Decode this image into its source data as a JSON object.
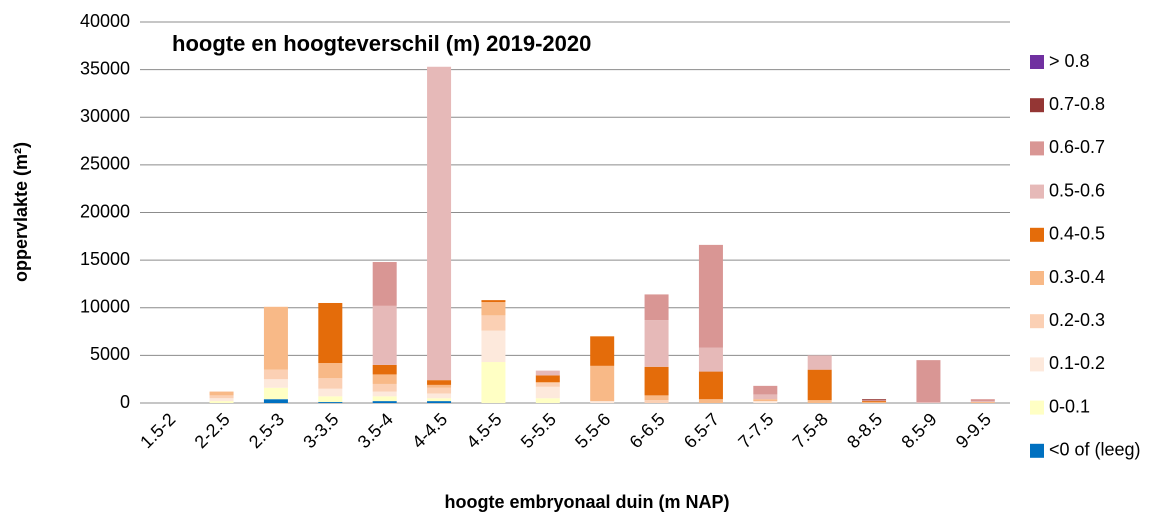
{
  "chart_data": {
    "type": "stacked_bar",
    "title": "hoogte en hoogteverschil (m) 2019-2020",
    "x_label": "hoogte embryonaal duin (m NAP)",
    "y_label": "oppervlakte (m²)",
    "categories": [
      "1.5-2",
      "2-2.5",
      "2.5-3",
      "3-3.5",
      "3.5-4",
      "4-4.5",
      "4.5-5",
      "5-5.5",
      "5.5-6",
      "6-6.5",
      "6.5-7",
      "7-7.5",
      "7.5-8",
      "8-8.5",
      "8.5-9",
      "9-9.5"
    ],
    "series": [
      {
        "name": "<0 of (leeg)",
        "color": "#0070c0",
        "values": [
          0,
          0,
          400,
          100,
          200,
          200,
          0,
          0,
          0,
          0,
          0,
          0,
          0,
          0,
          0,
          0
        ]
      },
      {
        "name": "0-0.1",
        "color": "#ffffc4",
        "values": [
          0,
          200,
          1200,
          600,
          500,
          300,
          4300,
          500,
          0,
          0,
          0,
          0,
          0,
          0,
          0,
          0
        ]
      },
      {
        "name": "0.1-0.2",
        "color": "#fde9dc",
        "values": [
          0,
          300,
          900,
          800,
          500,
          500,
          3300,
          1200,
          200,
          0,
          0,
          200,
          0,
          0,
          0,
          0
        ]
      },
      {
        "name": "0.2-0.3",
        "color": "#fbd0b4",
        "values": [
          0,
          300,
          1000,
          1100,
          800,
          600,
          1600,
          400,
          0,
          300,
          0,
          0,
          0,
          0,
          0,
          0
        ]
      },
      {
        "name": "0.3-0.4",
        "color": "#f8b987",
        "values": [
          0,
          400,
          6600,
          1600,
          1000,
          300,
          1400,
          100,
          3700,
          500,
          400,
          200,
          300,
          100,
          0,
          100
        ]
      },
      {
        "name": "0.4-0.5",
        "color": "#e46c0a",
        "values": [
          0,
          0,
          0,
          6300,
          1000,
          500,
          200,
          700,
          3100,
          3000,
          2900,
          0,
          3200,
          100,
          0,
          0
        ]
      },
      {
        "name": "0.5-0.6",
        "color": "#e6b9b8",
        "values": [
          0,
          0,
          0,
          0,
          6200,
          32900,
          0,
          500,
          0,
          4900,
          2500,
          500,
          1500,
          0,
          100,
          100
        ]
      },
      {
        "name": "0.6-0.7",
        "color": "#d99694",
        "values": [
          0,
          0,
          0,
          0,
          4600,
          0,
          0,
          0,
          0,
          2700,
          10800,
          900,
          0,
          100,
          4400,
          200
        ]
      },
      {
        "name": "0.7-0.8",
        "color": "#943634",
        "values": [
          0,
          0,
          0,
          0,
          0,
          0,
          0,
          0,
          0,
          0,
          0,
          0,
          0,
          100,
          0,
          0
        ]
      },
      {
        "name": "> 0.8",
        "color": "#7030a0",
        "values": [
          0,
          0,
          0,
          0,
          0,
          0,
          0,
          0,
          0,
          0,
          0,
          0,
          0,
          0,
          0,
          0
        ]
      }
    ],
    "ylim": [
      0,
      40000
    ],
    "yticks": [
      0,
      5000,
      10000,
      15000,
      20000,
      25000,
      30000,
      35000,
      40000
    ],
    "grid": true
  }
}
